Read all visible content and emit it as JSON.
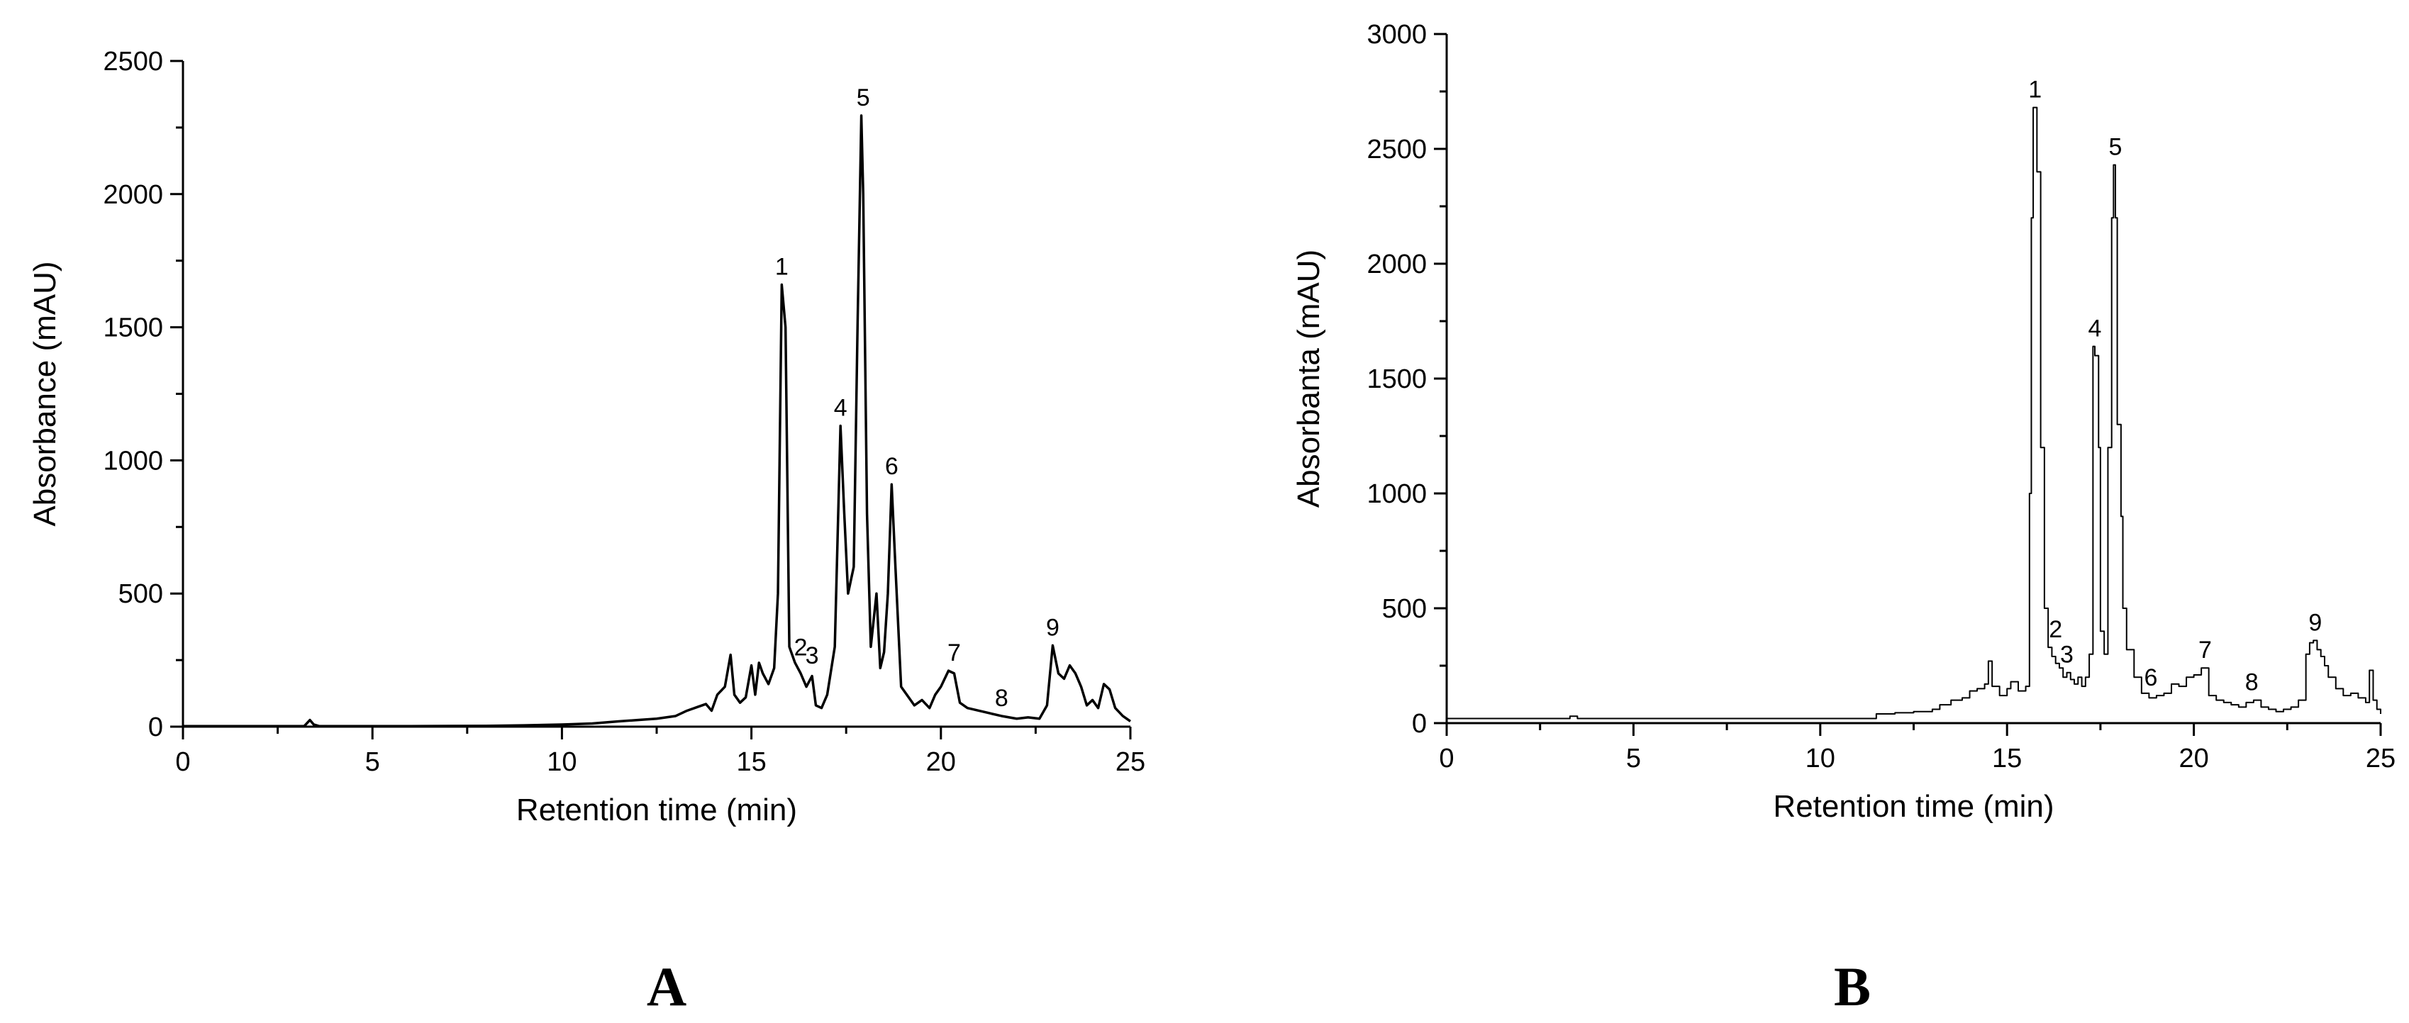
{
  "chart_data": [
    {
      "type": "line",
      "panel_label": "A",
      "xlabel": "Retention time (min)",
      "ylabel": "Absorbance (mAU)",
      "xlim": [
        0,
        25
      ],
      "ylim": [
        0,
        2500
      ],
      "xticks": [
        0,
        5,
        10,
        15,
        20,
        25
      ],
      "yticks": [
        0,
        500,
        1000,
        1500,
        2000,
        2500
      ],
      "grid": false,
      "line_style": "smooth",
      "line_color": "#000000",
      "peak_labels": [
        {
          "label": "1",
          "x": 15.8,
          "y": 1660
        },
        {
          "label": "2",
          "x": 16.3,
          "y": 230
        },
        {
          "label": "3",
          "x": 16.6,
          "y": 200
        },
        {
          "label": "4",
          "x": 17.35,
          "y": 1130
        },
        {
          "label": "5",
          "x": 17.95,
          "y": 2295
        },
        {
          "label": "6",
          "x": 18.7,
          "y": 910
        },
        {
          "label": "7",
          "x": 20.35,
          "y": 210
        },
        {
          "label": "8",
          "x": 21.6,
          "y": 40
        },
        {
          "label": "9",
          "x": 22.95,
          "y": 305
        }
      ],
      "x": [
        0,
        3.2,
        3.35,
        3.45,
        3.6,
        4,
        6,
        8,
        9,
        10,
        10.8,
        11.5,
        12,
        12.5,
        13,
        13.3,
        13.6,
        13.8,
        13.95,
        14.1,
        14.3,
        14.45,
        14.55,
        14.7,
        14.85,
        15,
        15.1,
        15.2,
        15.3,
        15.45,
        15.6,
        15.7,
        15.8,
        15.9,
        16,
        16.15,
        16.3,
        16.45,
        16.6,
        16.7,
        16.85,
        17,
        17.2,
        17.35,
        17.45,
        17.55,
        17.7,
        17.8,
        17.9,
        17.95,
        18.05,
        18.15,
        18.3,
        18.4,
        18.5,
        18.6,
        18.7,
        18.8,
        18.95,
        19.1,
        19.3,
        19.5,
        19.7,
        19.85,
        20,
        20.2,
        20.35,
        20.5,
        20.7,
        21,
        21.3,
        21.6,
        21.8,
        22,
        22.3,
        22.6,
        22.8,
        22.95,
        23.1,
        23.25,
        23.4,
        23.55,
        23.7,
        23.85,
        24,
        24.15,
        24.3,
        24.45,
        24.6,
        24.8,
        25
      ],
      "y": [
        2,
        2,
        25,
        8,
        2,
        2,
        2,
        3,
        5,
        8,
        12,
        20,
        25,
        30,
        40,
        60,
        75,
        85,
        60,
        120,
        150,
        270,
        120,
        90,
        110,
        230,
        120,
        240,
        200,
        160,
        220,
        500,
        1660,
        1500,
        300,
        240,
        200,
        150,
        190,
        80,
        70,
        120,
        300,
        1130,
        800,
        500,
        600,
        1500,
        2295,
        2000,
        800,
        300,
        500,
        220,
        280,
        500,
        910,
        600,
        150,
        120,
        80,
        100,
        70,
        120,
        150,
        210,
        200,
        90,
        70,
        60,
        50,
        40,
        35,
        30,
        35,
        30,
        80,
        305,
        200,
        180,
        230,
        200,
        150,
        80,
        100,
        70,
        160,
        140,
        70,
        40,
        20
      ]
    },
    {
      "type": "line",
      "panel_label": "B",
      "xlabel": "Retention time (min)",
      "ylabel": "Absorbanta (mAU)",
      "xlim": [
        0,
        25
      ],
      "ylim": [
        0,
        3000
      ],
      "xticks": [
        0,
        5,
        10,
        15,
        20,
        25
      ],
      "yticks": [
        0,
        500,
        1000,
        1500,
        2000,
        2500,
        3000
      ],
      "grid": false,
      "line_style": "step",
      "line_color": "#000000",
      "peak_labels": [
        {
          "label": "1",
          "x": 15.75,
          "y": 2680
        },
        {
          "label": "2",
          "x": 16.3,
          "y": 330
        },
        {
          "label": "3",
          "x": 16.6,
          "y": 220
        },
        {
          "label": "4",
          "x": 17.35,
          "y": 1640
        },
        {
          "label": "5",
          "x": 17.9,
          "y": 2430
        },
        {
          "label": "6",
          "x": 18.85,
          "y": 120
        },
        {
          "label": "7",
          "x": 20.3,
          "y": 240
        },
        {
          "label": "8",
          "x": 21.55,
          "y": 100
        },
        {
          "label": "9",
          "x": 23.25,
          "y": 360
        }
      ],
      "x": [
        0,
        3.3,
        3.5,
        11.2,
        11.5,
        12,
        12.5,
        13,
        13.2,
        13.5,
        13.8,
        14,
        14.2,
        14.4,
        14.5,
        14.6,
        14.8,
        15,
        15.1,
        15.3,
        15.5,
        15.6,
        15.65,
        15.7,
        15.8,
        15.9,
        16,
        16.1,
        16.2,
        16.3,
        16.4,
        16.5,
        16.6,
        16.7,
        16.8,
        16.9,
        17,
        17.1,
        17.2,
        17.3,
        17.35,
        17.45,
        17.5,
        17.6,
        17.7,
        17.8,
        17.85,
        17.9,
        17.95,
        18.05,
        18.1,
        18.2,
        18.4,
        18.6,
        18.8,
        19,
        19.2,
        19.4,
        19.6,
        19.8,
        20,
        20.2,
        20.4,
        20.6,
        20.8,
        21,
        21.2,
        21.4,
        21.6,
        21.8,
        22,
        22.2,
        22.4,
        22.6,
        22.8,
        23,
        23.1,
        23.2,
        23.3,
        23.4,
        23.5,
        23.6,
        23.8,
        24,
        24.2,
        24.4,
        24.6,
        24.7,
        24.8,
        24.9,
        25
      ],
      "y": [
        20,
        30,
        20,
        20,
        40,
        45,
        50,
        60,
        80,
        100,
        110,
        140,
        150,
        170,
        270,
        160,
        120,
        150,
        180,
        140,
        160,
        1000,
        2200,
        2680,
        2400,
        1200,
        500,
        330,
        290,
        260,
        240,
        200,
        220,
        190,
        170,
        200,
        160,
        200,
        300,
        1640,
        1600,
        1200,
        400,
        300,
        1200,
        2200,
        2430,
        2200,
        1300,
        900,
        500,
        320,
        200,
        130,
        110,
        120,
        130,
        170,
        160,
        200,
        210,
        240,
        120,
        100,
        90,
        80,
        70,
        90,
        100,
        70,
        60,
        50,
        60,
        70,
        100,
        300,
        350,
        360,
        320,
        290,
        250,
        200,
        150,
        120,
        130,
        110,
        90,
        230,
        100,
        60,
        40
      ]
    }
  ]
}
